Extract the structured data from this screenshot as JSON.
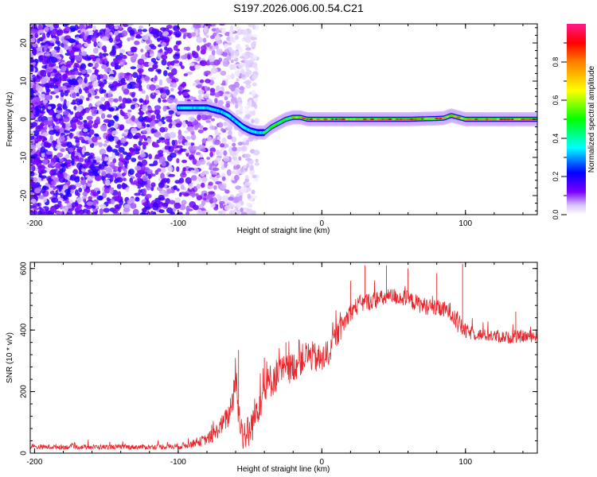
{
  "title": "S197.2026.006.00.54.C21",
  "chart_data": [
    {
      "type": "heatmap",
      "name": "spectrogram",
      "xlabel": "Height of straight line (km)",
      "ylabel": "Frequency (Hz)",
      "xlim": [
        -203,
        150
      ],
      "ylim": [
        -25,
        25
      ],
      "xticks": [
        -200,
        -100,
        0,
        100
      ],
      "xtick_labels": [
        "-200",
        "-100",
        "0",
        "100"
      ],
      "yticks": [
        -20,
        -10,
        0,
        10,
        20
      ],
      "ytick_labels": [
        "-20",
        "-10",
        "0",
        "10",
        "20"
      ],
      "ridge": {
        "description": "dominant spectral line (frequency vs height)",
        "x": [
          -100,
          -90,
          -80,
          -70,
          -65,
          -60,
          -55,
          -50,
          -45,
          -40,
          -35,
          -30,
          -25,
          -20,
          -15,
          -10,
          0,
          10,
          20,
          40,
          60,
          80,
          85,
          90,
          95,
          100,
          150
        ],
        "y": [
          3,
          3,
          3,
          2,
          1,
          -0.5,
          -2,
          -3,
          -3.5,
          -3.5,
          -2,
          -1,
          0,
          0.5,
          0.5,
          0,
          0,
          0,
          0,
          0,
          0,
          0.2,
          0.3,
          1,
          0.5,
          0,
          0
        ],
        "amplitude_note": "peak ~0.9 normalized along ridge for x > -20"
      },
      "noise_region": {
        "x_range": [
          -203,
          -60
        ],
        "amplitude": "0.05-0.3"
      },
      "colorbar": {
        "label": "Normalized spectral amplitude",
        "range": [
          0,
          1
        ],
        "ticks": [
          0.0,
          0.2,
          0.4,
          0.6,
          0.8
        ],
        "tick_labels": [
          "0.0",
          "0.2",
          "0.4",
          "0.6",
          "0.8"
        ],
        "colors": [
          "#ffffff",
          "#b57cff",
          "#7a00ff",
          "#0000ff",
          "#00ffff",
          "#00ff00",
          "#ffff00",
          "#ff7f00",
          "#ff0000",
          "#ff1493"
        ]
      }
    },
    {
      "type": "line",
      "name": "snr",
      "xlabel": "Height of straight line (km)",
      "ylabel": "SNR (10 * v/v)",
      "xlim": [
        -203,
        150
      ],
      "ylim": [
        0,
        620
      ],
      "xticks": [
        -200,
        -100,
        0,
        100
      ],
      "xtick_labels": [
        "-200",
        "-100",
        "0",
        "100"
      ],
      "yticks": [
        0,
        200,
        400,
        600
      ],
      "ytick_labels": [
        "0",
        "200",
        "400",
        "600"
      ],
      "line_color": "#e8262b",
      "series": [
        {
          "name": "SNR",
          "x": [
            -203,
            -180,
            -160,
            -140,
            -120,
            -100,
            -90,
            -80,
            -75,
            -70,
            -65,
            -62,
            -60,
            -58,
            -55,
            -50,
            -45,
            -40,
            -35,
            -30,
            -25,
            -20,
            -15,
            -10,
            -5,
            0,
            5,
            10,
            15,
            20,
            25,
            30,
            40,
            50,
            60,
            70,
            80,
            90,
            95,
            100,
            110,
            120,
            130,
            140,
            150
          ],
          "y": [
            20,
            20,
            20,
            20,
            20,
            22,
            30,
            45,
            60,
            90,
            120,
            180,
            250,
            130,
            60,
            70,
            150,
            200,
            240,
            260,
            270,
            280,
            300,
            320,
            310,
            300,
            330,
            380,
            420,
            460,
            480,
            490,
            500,
            510,
            500,
            480,
            470,
            460,
            420,
            395,
            385,
            380,
            375,
            380,
            380
          ],
          "noise_amplitude": [
            8,
            8,
            8,
            8,
            8,
            10,
            12,
            18,
            25,
            30,
            40,
            50,
            60,
            60,
            50,
            60,
            60,
            60,
            60,
            55,
            50,
            50,
            50,
            50,
            50,
            50,
            45,
            40,
            35,
            30,
            30,
            30,
            28,
            28,
            28,
            28,
            28,
            30,
            35,
            25,
            20,
            20,
            20,
            20,
            20
          ],
          "spikes": [
            [
              -58,
              335
            ],
            [
              -40,
              310
            ],
            [
              -25,
              360
            ],
            [
              20,
              560
            ],
            [
              30,
              610
            ],
            [
              45,
              610
            ],
            [
              60,
              600
            ],
            [
              80,
              585
            ],
            [
              98,
              615
            ],
            [
              135,
              460
            ]
          ]
        }
      ]
    }
  ]
}
